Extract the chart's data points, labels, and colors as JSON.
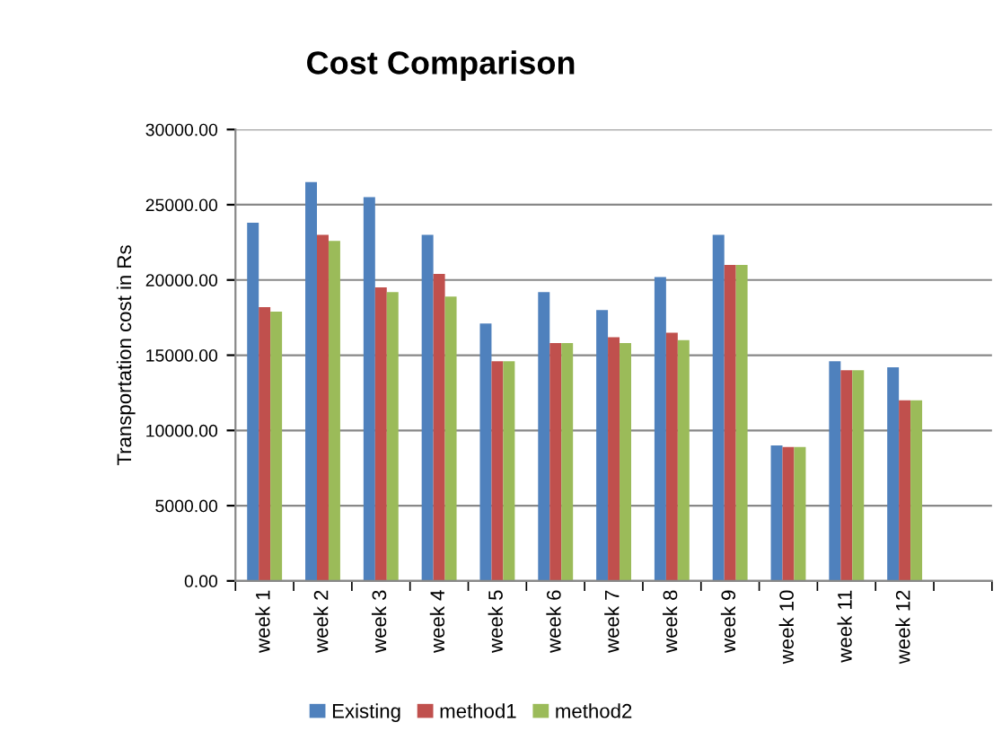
{
  "chart_data": {
    "type": "bar",
    "title": "Cost Comparison",
    "ylabel": "Transportation cost in Rs",
    "categories": [
      "week 1",
      "week 2",
      "week 3",
      "week 4",
      "week 5",
      "week 6",
      "week 7",
      "week 8",
      "week 9",
      "week 10",
      "week 11",
      "week 12",
      null
    ],
    "series": [
      {
        "name": "Existing",
        "color": "#4f81bd",
        "values": [
          23800,
          26500,
          25500,
          23000,
          17100,
          19200,
          18000,
          20200,
          23000,
          9000,
          14600,
          14200,
          null
        ]
      },
      {
        "name": "method1",
        "color": "#c0504d",
        "values": [
          18200,
          23000,
          19500,
          20400,
          14600,
          15800,
          16200,
          16500,
          21000,
          8900,
          14000,
          12000,
          null
        ]
      },
      {
        "name": "method2",
        "color": "#9bbb59",
        "values": [
          17900,
          22600,
          19200,
          18900,
          14600,
          15800,
          15800,
          16000,
          21000,
          8900,
          14000,
          12000,
          null
        ]
      }
    ],
    "ylim": [
      0,
      30000
    ],
    "yticks": [
      {
        "value": 0,
        "label": "0.00"
      },
      {
        "value": 5000,
        "label": "5000.00"
      },
      {
        "value": 10000,
        "label": "10000.00"
      },
      {
        "value": 15000,
        "label": "15000.00"
      },
      {
        "value": 20000,
        "label": "20000.00"
      },
      {
        "value": 25000,
        "label": "25000.00"
      },
      {
        "value": 30000,
        "label": "30000.00"
      }
    ],
    "grid": "y",
    "legend": "bottom"
  }
}
